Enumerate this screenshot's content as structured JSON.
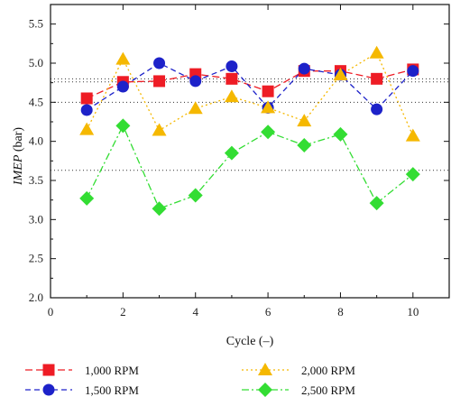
{
  "chart_data": {
    "type": "line",
    "title": "",
    "xlabel": "Cycle (–)",
    "ylabel_italic": "IMEP",
    "ylabel_unit": " (bar)",
    "xlim": [
      0,
      11
    ],
    "ylim": [
      2.0,
      5.75
    ],
    "xticks": [
      0,
      2,
      4,
      6,
      8,
      10
    ],
    "yticks": [
      2.0,
      2.5,
      3.0,
      3.5,
      4.0,
      4.5,
      5.0,
      5.5
    ],
    "x": [
      1,
      2,
      3,
      4,
      5,
      6,
      7,
      8,
      9,
      10
    ],
    "grid": false,
    "legend_position": "bottom",
    "reference_lines": [
      4.8,
      4.76,
      4.5,
      3.63
    ],
    "series": [
      {
        "name": "1,000 RPM",
        "color": "#ee1c25",
        "marker": "square",
        "dash": "8,4",
        "values": [
          4.55,
          4.76,
          4.77,
          4.86,
          4.8,
          4.64,
          4.9,
          4.9,
          4.8,
          4.92
        ]
      },
      {
        "name": "1,500 RPM",
        "color": "#1d22c9",
        "marker": "circle",
        "dash": "6,4",
        "values": [
          4.4,
          4.7,
          5.0,
          4.77,
          4.96,
          4.43,
          4.93,
          4.85,
          4.41,
          4.9
        ]
      },
      {
        "name": "2,000 RPM",
        "color": "#f5b800",
        "marker": "triangle",
        "dash": "2,3",
        "values": [
          4.15,
          5.05,
          4.14,
          4.42,
          4.57,
          4.43,
          4.26,
          4.85,
          5.13,
          4.07
        ]
      },
      {
        "name": "2,500 RPM",
        "color": "#33dd33",
        "marker": "diamond",
        "dash": "8,3,2,3",
        "values": [
          3.27,
          4.2,
          3.14,
          3.31,
          3.85,
          4.12,
          3.95,
          4.09,
          3.21,
          3.58
        ]
      }
    ]
  }
}
